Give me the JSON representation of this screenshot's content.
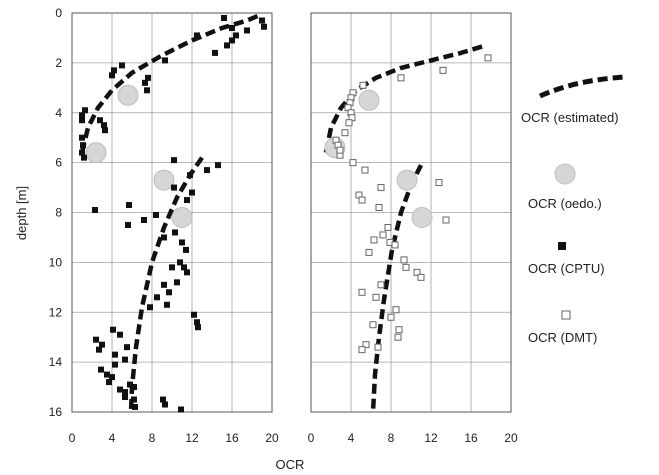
{
  "chart_data": [
    {
      "type": "scatter",
      "panel": "left",
      "xlim": [
        0,
        20
      ],
      "ylim": [
        16,
        0
      ],
      "y_inverted": true,
      "grid": true,
      "x_ticks": [
        "0",
        "4",
        "8",
        "12",
        "16",
        "20"
      ],
      "y_ticks": [
        "0",
        "2",
        "4",
        "6",
        "8",
        "10",
        "12",
        "14",
        "16"
      ],
      "series": [
        {
          "name": "OCR (estimated)",
          "kind": "dashed-curve",
          "segments": [
            [
              [
                1.0,
                5.6
              ],
              [
                1.6,
                4.6
              ],
              [
                2.6,
                3.8
              ],
              [
                4.0,
                3.1
              ],
              [
                6.0,
                2.4
              ],
              [
                9.0,
                1.7
              ],
              [
                12.0,
                1.1
              ],
              [
                15.0,
                0.6
              ],
              [
                17.5,
                0.3
              ],
              [
                19.0,
                0.05
              ]
            ],
            [
              [
                13.0,
                5.8
              ],
              [
                11.8,
                6.5
              ],
              [
                10.5,
                7.4
              ],
              [
                9.2,
                8.6
              ],
              [
                8.0,
                10.0
              ],
              [
                7.0,
                11.8
              ],
              [
                6.4,
                13.4
              ],
              [
                6.0,
                15.0
              ],
              [
                5.9,
                16.0
              ]
            ]
          ]
        },
        {
          "name": "OCR (oedo.)",
          "kind": "circle",
          "points": [
            [
              5.6,
              3.3
            ],
            [
              2.4,
              5.6
            ],
            [
              9.2,
              6.7
            ],
            [
              11.0,
              8.2
            ]
          ]
        },
        {
          "name": "OCR (CPTU)",
          "kind": "filled-square",
          "points": [
            [
              15.2,
              0.2
            ],
            [
              16.0,
              0.6
            ],
            [
              16.4,
              0.9
            ],
            [
              17.5,
              0.7
            ],
            [
              16.0,
              1.1
            ],
            [
              15.5,
              1.3
            ],
            [
              14.3,
              1.6
            ],
            [
              19.0,
              0.3
            ],
            [
              19.2,
              0.55
            ],
            [
              12.5,
              0.9
            ],
            [
              4.2,
              2.3
            ],
            [
              5.0,
              2.1
            ],
            [
              4.0,
              2.5
            ],
            [
              9.3,
              1.9
            ],
            [
              7.3,
              2.8
            ],
            [
              7.5,
              3.1
            ],
            [
              7.6,
              2.6
            ],
            [
              1.3,
              3.9
            ],
            [
              1.0,
              4.1
            ],
            [
              1.0,
              4.3
            ],
            [
              3.2,
              4.5
            ],
            [
              3.3,
              4.7
            ],
            [
              2.8,
              4.3
            ],
            [
              1.0,
              5.0
            ],
            [
              1.1,
              5.3
            ],
            [
              1.0,
              5.6
            ],
            [
              1.2,
              5.8
            ],
            [
              10.2,
              5.9
            ],
            [
              11.8,
              6.5
            ],
            [
              14.6,
              6.1
            ],
            [
              13.5,
              6.3
            ],
            [
              10.2,
              7.0
            ],
            [
              12.0,
              7.2
            ],
            [
              11.5,
              7.5
            ],
            [
              2.3,
              7.9
            ],
            [
              5.7,
              7.7
            ],
            [
              7.2,
              8.3
            ],
            [
              8.4,
              8.1
            ],
            [
              5.6,
              8.5
            ],
            [
              10.3,
              8.8
            ],
            [
              9.2,
              9.0
            ],
            [
              11.0,
              9.2
            ],
            [
              11.4,
              9.5
            ],
            [
              10.8,
              10.0
            ],
            [
              11.2,
              10.2
            ],
            [
              11.5,
              10.4
            ],
            [
              10.0,
              10.2
            ],
            [
              10.5,
              10.8
            ],
            [
              9.2,
              10.9
            ],
            [
              9.7,
              11.2
            ],
            [
              8.5,
              11.4
            ],
            [
              9.5,
              11.7
            ],
            [
              7.8,
              11.8
            ],
            [
              12.2,
              12.1
            ],
            [
              12.5,
              12.4
            ],
            [
              12.6,
              12.6
            ],
            [
              4.1,
              12.7
            ],
            [
              4.8,
              12.9
            ],
            [
              2.4,
              13.1
            ],
            [
              3.0,
              13.3
            ],
            [
              2.7,
              13.5
            ],
            [
              5.5,
              13.4
            ],
            [
              4.3,
              13.7
            ],
            [
              5.3,
              13.9
            ],
            [
              4.3,
              14.1
            ],
            [
              2.9,
              14.3
            ],
            [
              3.5,
              14.5
            ],
            [
              4.0,
              14.6
            ],
            [
              3.7,
              14.8
            ],
            [
              5.8,
              14.9
            ],
            [
              6.2,
              15.0
            ],
            [
              4.8,
              15.1
            ],
            [
              5.3,
              15.2
            ],
            [
              5.3,
              15.4
            ],
            [
              6.2,
              15.5
            ],
            [
              6.3,
              15.8
            ],
            [
              9.1,
              15.5
            ],
            [
              9.3,
              15.7
            ],
            [
              10.9,
              15.9
            ]
          ]
        }
      ]
    },
    {
      "type": "scatter",
      "panel": "right",
      "xlim": [
        0,
        20
      ],
      "ylim": [
        16,
        0
      ],
      "y_inverted": true,
      "grid": true,
      "x_ticks": [
        "0",
        "4",
        "8",
        "12",
        "16",
        "20"
      ],
      "series": [
        {
          "name": "OCR (estimated)",
          "kind": "dashed-curve",
          "segments": [
            [
              [
                1.5,
                5.6
              ],
              [
                2.0,
                4.6
              ],
              [
                3.0,
                3.8
              ],
              [
                4.5,
                3.1
              ],
              [
                6.5,
                2.6
              ],
              [
                9.0,
                2.2
              ],
              [
                12.0,
                1.9
              ],
              [
                15.0,
                1.6
              ],
              [
                17.5,
                1.3
              ]
            ],
            [
              [
                11.0,
                6.1
              ],
              [
                10.0,
                6.9
              ],
              [
                9.0,
                8.0
              ],
              [
                8.1,
                9.5
              ],
              [
                7.3,
                11.5
              ],
              [
                6.8,
                13.0
              ],
              [
                6.4,
                14.5
              ],
              [
                6.2,
                16.0
              ]
            ]
          ]
        },
        {
          "name": "OCR (oedo.)",
          "kind": "circle",
          "points": [
            [
              5.8,
              3.5
            ],
            [
              2.4,
              5.4
            ],
            [
              9.6,
              6.7
            ],
            [
              11.1,
              8.2
            ]
          ]
        },
        {
          "name": "OCR (DMT)",
          "kind": "open-square",
          "points": [
            [
              17.7,
              1.8
            ],
            [
              13.2,
              2.3
            ],
            [
              9.0,
              2.6
            ],
            [
              5.2,
              2.9
            ],
            [
              4.2,
              3.2
            ],
            [
              4.0,
              3.4
            ],
            [
              3.9,
              3.6
            ],
            [
              3.7,
              3.8
            ],
            [
              4.0,
              4.0
            ],
            [
              4.1,
              4.2
            ],
            [
              3.8,
              4.4
            ],
            [
              3.4,
              4.8
            ],
            [
              2.5,
              5.1
            ],
            [
              2.7,
              5.3
            ],
            [
              2.9,
              5.7
            ],
            [
              2.9,
              5.5
            ],
            [
              4.2,
              6.0
            ],
            [
              5.4,
              6.3
            ],
            [
              12.8,
              6.8
            ],
            [
              7.0,
              7.0
            ],
            [
              4.8,
              7.3
            ],
            [
              5.1,
              7.5
            ],
            [
              6.8,
              7.8
            ],
            [
              13.5,
              8.3
            ],
            [
              7.7,
              8.6
            ],
            [
              7.2,
              8.9
            ],
            [
              6.3,
              9.1
            ],
            [
              7.9,
              9.2
            ],
            [
              8.4,
              9.3
            ],
            [
              5.8,
              9.6
            ],
            [
              9.3,
              9.9
            ],
            [
              9.5,
              10.2
            ],
            [
              10.6,
              10.4
            ],
            [
              11.0,
              10.6
            ],
            [
              7.0,
              10.9
            ],
            [
              5.1,
              11.2
            ],
            [
              6.5,
              11.4
            ],
            [
              8.5,
              11.9
            ],
            [
              8.0,
              12.2
            ],
            [
              6.2,
              12.5
            ],
            [
              8.8,
              12.7
            ],
            [
              8.7,
              13.0
            ],
            [
              5.5,
              13.3
            ],
            [
              5.1,
              13.5
            ],
            [
              6.7,
              13.4
            ]
          ]
        }
      ]
    }
  ],
  "axes": {
    "xlabel": "OCR",
    "ylabel": "depth [m]"
  },
  "legend": {
    "placement": "right",
    "items": [
      {
        "label": "OCR (estimated)",
        "kind": "dashed-curve"
      },
      {
        "label": "OCR (oedo.)",
        "kind": "circle"
      },
      {
        "label": "OCR (CPTU)",
        "kind": "filled-square"
      },
      {
        "label": "OCR (DMT)",
        "kind": "open-square"
      }
    ]
  },
  "colors": {
    "grid": "#a0a0a0",
    "frame": "#555555",
    "curve": "#111111",
    "circle_fill": "#d6d6d6",
    "circle_stroke": "#bdbdbd",
    "cptu": "#111111",
    "dmt_stroke": "#666666"
  }
}
